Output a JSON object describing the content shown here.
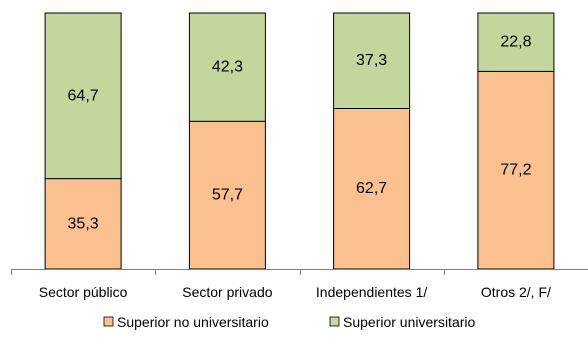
{
  "chart_data": {
    "type": "bar",
    "stacked": true,
    "percent_stacked": true,
    "categories": [
      "Sector público",
      "Sector privado",
      "Independientes 1/",
      "Otros 2/, F/"
    ],
    "series": [
      {
        "name": "Superior no universitario",
        "values": [
          35.3,
          57.7,
          62.7,
          77.2
        ],
        "labels": [
          "35,3",
          "57,7",
          "62,7",
          "77,2"
        ],
        "color": "#fac090"
      },
      {
        "name": "Superior universitario",
        "values": [
          64.7,
          42.3,
          37.3,
          22.8
        ],
        "labels": [
          "64,7",
          "42,3",
          "37,3",
          "22,8"
        ],
        "color": "#c3d69b"
      }
    ],
    "ylim": [
      0,
      100
    ],
    "bar_stroke_color": "#000000",
    "grid": false,
    "legend_position": "bottom"
  }
}
